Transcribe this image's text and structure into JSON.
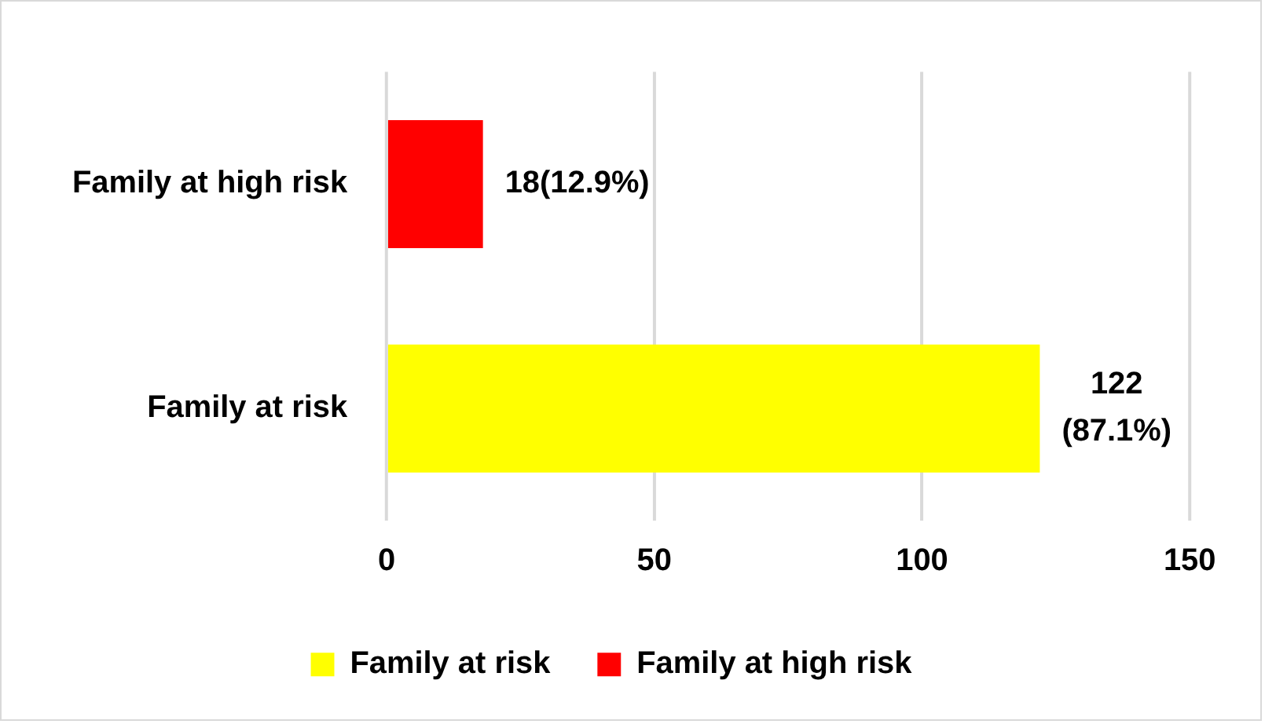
{
  "chart_data": {
    "type": "bar",
    "orientation": "horizontal",
    "stacked": true,
    "categories": [
      "Family at high risk",
      "Family at risk"
    ],
    "series": [
      {
        "name": "Family at risk",
        "color": "#ffff00",
        "values": [
          null,
          122
        ],
        "value_labels": [
          null,
          "122 (87.1%)"
        ]
      },
      {
        "name": "Family at high risk",
        "color": "#ff0000",
        "values": [
          18,
          null
        ],
        "value_labels": [
          "18(12.9%)",
          null
        ]
      }
    ],
    "xlim": [
      0,
      150
    ],
    "xticks": [
      0,
      50,
      100,
      150
    ],
    "grid": "x",
    "legend": "bottom"
  }
}
